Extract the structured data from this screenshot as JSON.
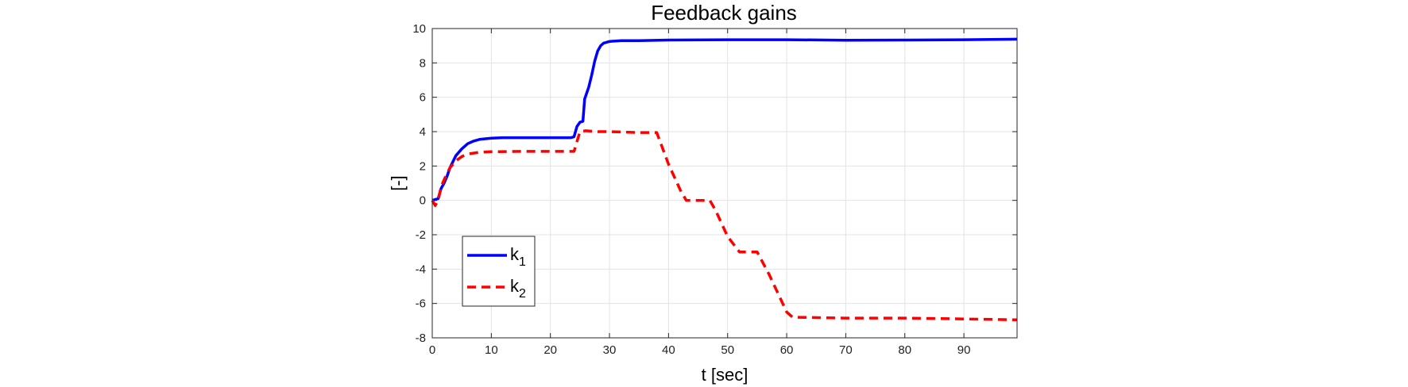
{
  "chart_data": {
    "type": "line",
    "title": "Feedback gains",
    "xlabel": "t [sec]",
    "ylabel": "[-]",
    "xlim": [
      0,
      99
    ],
    "ylim": [
      -8,
      10
    ],
    "xticks": [
      0,
      10,
      20,
      30,
      40,
      50,
      60,
      70,
      80,
      90
    ],
    "yticks": [
      10,
      8,
      6,
      4,
      2,
      0,
      -2,
      -4,
      -6,
      -8
    ],
    "grid": true,
    "legend_position": "lower-left",
    "series": [
      {
        "name": "k",
        "subscript": "1",
        "color": "#0000ff",
        "style": "solid",
        "x": [
          0,
          1,
          1.5,
          2,
          2.5,
          3,
          4,
          5,
          6,
          7,
          8,
          10,
          12,
          15,
          20,
          23.5,
          24,
          24.5,
          25,
          25.5,
          25.8,
          26,
          26.5,
          27,
          27.5,
          28,
          28.5,
          29,
          30,
          32,
          35,
          40,
          50,
          60,
          70,
          80,
          90,
          99
        ],
        "y": [
          0,
          0.1,
          0.7,
          1.0,
          1.4,
          1.9,
          2.6,
          3.0,
          3.3,
          3.45,
          3.55,
          3.62,
          3.65,
          3.65,
          3.65,
          3.65,
          3.7,
          4.3,
          4.55,
          4.6,
          5.9,
          6.1,
          6.6,
          7.3,
          8.1,
          8.7,
          9.0,
          9.15,
          9.25,
          9.3,
          9.3,
          9.33,
          9.35,
          9.35,
          9.32,
          9.33,
          9.35,
          9.38
        ]
      },
      {
        "name": "k",
        "subscript": "2",
        "color": "#ff0000",
        "style": "dashed",
        "x": [
          0,
          0.5,
          1.0,
          1.5,
          2,
          3,
          4,
          5,
          6,
          8,
          10,
          15,
          20,
          24,
          25,
          26,
          28,
          30,
          35,
          38,
          40,
          42,
          43,
          47,
          48,
          50,
          52,
          55,
          57,
          60,
          61,
          70,
          80,
          90,
          99
        ],
        "y": [
          0,
          -0.3,
          0,
          0.8,
          1.2,
          1.9,
          2.3,
          2.55,
          2.7,
          2.8,
          2.83,
          2.85,
          2.85,
          2.85,
          4.0,
          4.05,
          4.0,
          4.0,
          3.95,
          3.95,
          2.1,
          0.6,
          0,
          0,
          -0.6,
          -2.1,
          -3.0,
          -3.0,
          -4.3,
          -6.5,
          -6.8,
          -6.85,
          -6.85,
          -6.9,
          -6.95
        ]
      }
    ]
  }
}
